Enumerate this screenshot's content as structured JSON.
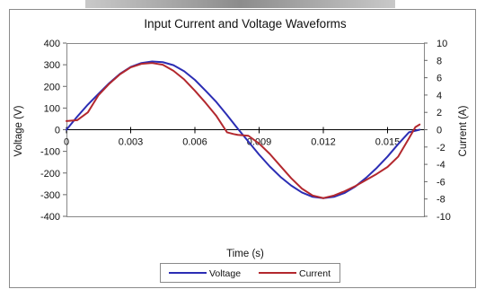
{
  "chart_data": {
    "type": "line",
    "title": "Input Current and Voltage Waveforms",
    "xlabel": "Time (s)",
    "ylabel_left": "Voltage (V)",
    "ylabel_right": "Current (A)",
    "xlim": [
      0,
      0.0167
    ],
    "ylim_left": [
      -400,
      400
    ],
    "ylim_right": [
      -10,
      10
    ],
    "x_ticks": [
      "0",
      "0.003",
      "0.006",
      "0.009",
      "0.012",
      "0.015"
    ],
    "x_tick_values": [
      0,
      0.003,
      0.006,
      0.009,
      0.012,
      0.015
    ],
    "y_ticks_left": [
      "400",
      "300",
      "200",
      "100",
      "0",
      "-100",
      "-200",
      "-300",
      "-400"
    ],
    "y_tick_values_left": [
      400,
      300,
      200,
      100,
      0,
      -100,
      -200,
      -300,
      -400
    ],
    "y_ticks_right": [
      "10",
      "8",
      "6",
      "4",
      "2",
      "0",
      "-2",
      "-4",
      "-6",
      "-8",
      "-10"
    ],
    "y_tick_values_right": [
      10,
      8,
      6,
      4,
      2,
      0,
      -2,
      -4,
      -6,
      -8,
      -10
    ],
    "grid": false,
    "legend_position": "bottom-center",
    "series": [
      {
        "name": "Voltage",
        "color": "#2b2db4",
        "axis": "left",
        "x": [
          0,
          0.0005,
          0.001,
          0.0015,
          0.002,
          0.0025,
          0.003,
          0.0035,
          0.004,
          0.0045,
          0.005,
          0.0055,
          0.006,
          0.0065,
          0.007,
          0.0075,
          0.008,
          0.0085,
          0.009,
          0.0095,
          0.01,
          0.0105,
          0.011,
          0.0115,
          0.012,
          0.0125,
          0.013,
          0.0135,
          0.014,
          0.0145,
          0.015,
          0.0155,
          0.016,
          0.0165
        ],
        "y": [
          0,
          60,
          116,
          166,
          215,
          258,
          290,
          308,
          315,
          312,
          298,
          270,
          230,
          180,
          128,
          68,
          5,
          -55,
          -115,
          -170,
          -218,
          -258,
          -290,
          -310,
          -316,
          -310,
          -292,
          -262,
          -222,
          -176,
          -124,
          -66,
          -12,
          0
        ]
      },
      {
        "name": "Current",
        "color": "#b3282e",
        "axis": "right",
        "x": [
          0,
          0.0005,
          0.001,
          0.0015,
          0.002,
          0.0025,
          0.003,
          0.0035,
          0.004,
          0.0045,
          0.005,
          0.0055,
          0.006,
          0.0065,
          0.007,
          0.0075,
          0.0078,
          0.008,
          0.0085,
          0.009,
          0.0095,
          0.01,
          0.0105,
          0.011,
          0.0115,
          0.012,
          0.0125,
          0.013,
          0.0135,
          0.014,
          0.0145,
          0.015,
          0.0155,
          0.016,
          0.0163,
          0.0165
        ],
        "y": [
          1.0,
          1.1,
          2.0,
          4.0,
          5.3,
          6.4,
          7.2,
          7.6,
          7.7,
          7.5,
          6.8,
          5.8,
          4.5,
          3.1,
          1.6,
          -0.3,
          -0.5,
          -0.6,
          -0.7,
          -1.6,
          -2.8,
          -4.2,
          -5.6,
          -6.8,
          -7.6,
          -7.9,
          -7.6,
          -7.1,
          -6.5,
          -5.8,
          -5.1,
          -4.3,
          -3.1,
          -1.0,
          0.3,
          0.6
        ]
      }
    ]
  }
}
